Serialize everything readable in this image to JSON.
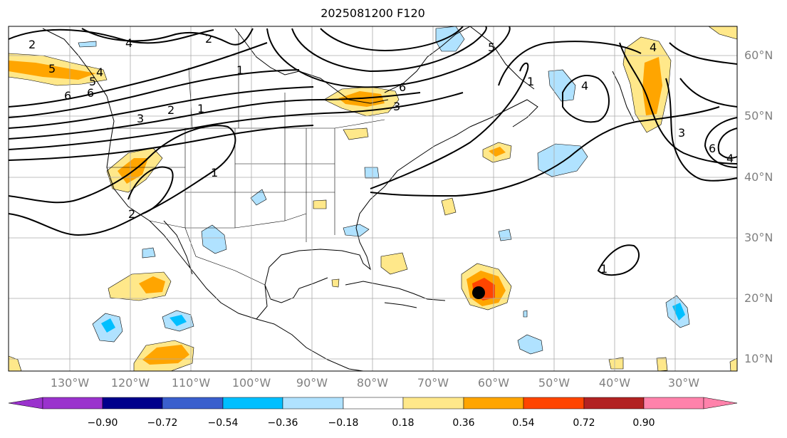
{
  "title": "2025081200 F120",
  "lat_labels": [
    "60°N",
    "50°N",
    "40°N",
    "30°N",
    "20°N",
    "10°N"
  ],
  "lon_labels": [
    "130°W",
    "120°W",
    "110°W",
    "100°W",
    "90°W",
    "80°W",
    "70°W",
    "60°W",
    "50°W",
    "40°W",
    "30°W"
  ],
  "colorbar": {
    "ticks": [
      "−0.90",
      "−0.72",
      "−0.54",
      "−0.36",
      "−0.18",
      "0.18",
      "0.36",
      "0.54",
      "0.72",
      "0.90"
    ],
    "colors": [
      "#9a32cd",
      "#00008b",
      "#3a5fcd",
      "#00bfff",
      "#b0e2ff",
      "#ffffff",
      "#ffe88a",
      "#ffa500",
      "#ff4500",
      "#b22222",
      "#ff82ab"
    ],
    "under_color": "#9a32cd",
    "over_color": "#ff82ab"
  },
  "contour_labels": [
    "2",
    "4",
    "2",
    "5",
    "4",
    "5",
    "6",
    "3",
    "2",
    "1",
    "6",
    "3",
    "1",
    "4",
    "5",
    "3",
    "6",
    "4",
    "1",
    "1",
    "2",
    "1",
    "6",
    "4"
  ],
  "storm_marker": {
    "lat": 21,
    "lon": -62
  }
}
